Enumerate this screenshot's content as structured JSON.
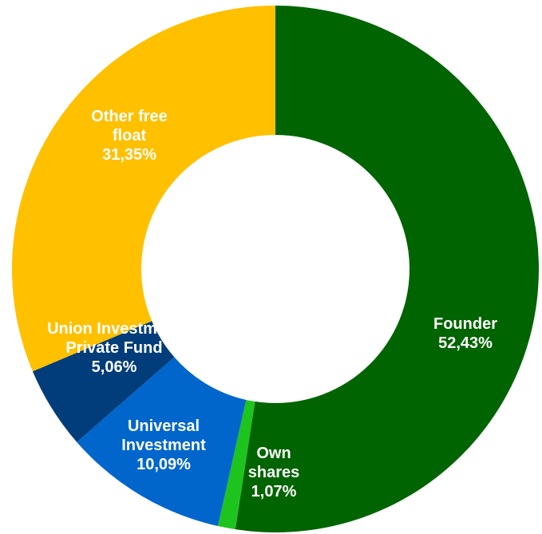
{
  "chart_data": {
    "type": "donut",
    "categories": [
      "Founder",
      "Own shares",
      "Universal Investment",
      "Union Investment Private Fund",
      "Other free float"
    ],
    "values": [
      52.43,
      1.07,
      10.09,
      5.06,
      31.35
    ],
    "value_labels": [
      "52,43%",
      "1,07%",
      "10,09%",
      "5,06%",
      "31,35%"
    ],
    "colors": [
      "#006400",
      "#1ec41e",
      "#0066cc",
      "#003d7a",
      "#ffc000"
    ]
  }
}
